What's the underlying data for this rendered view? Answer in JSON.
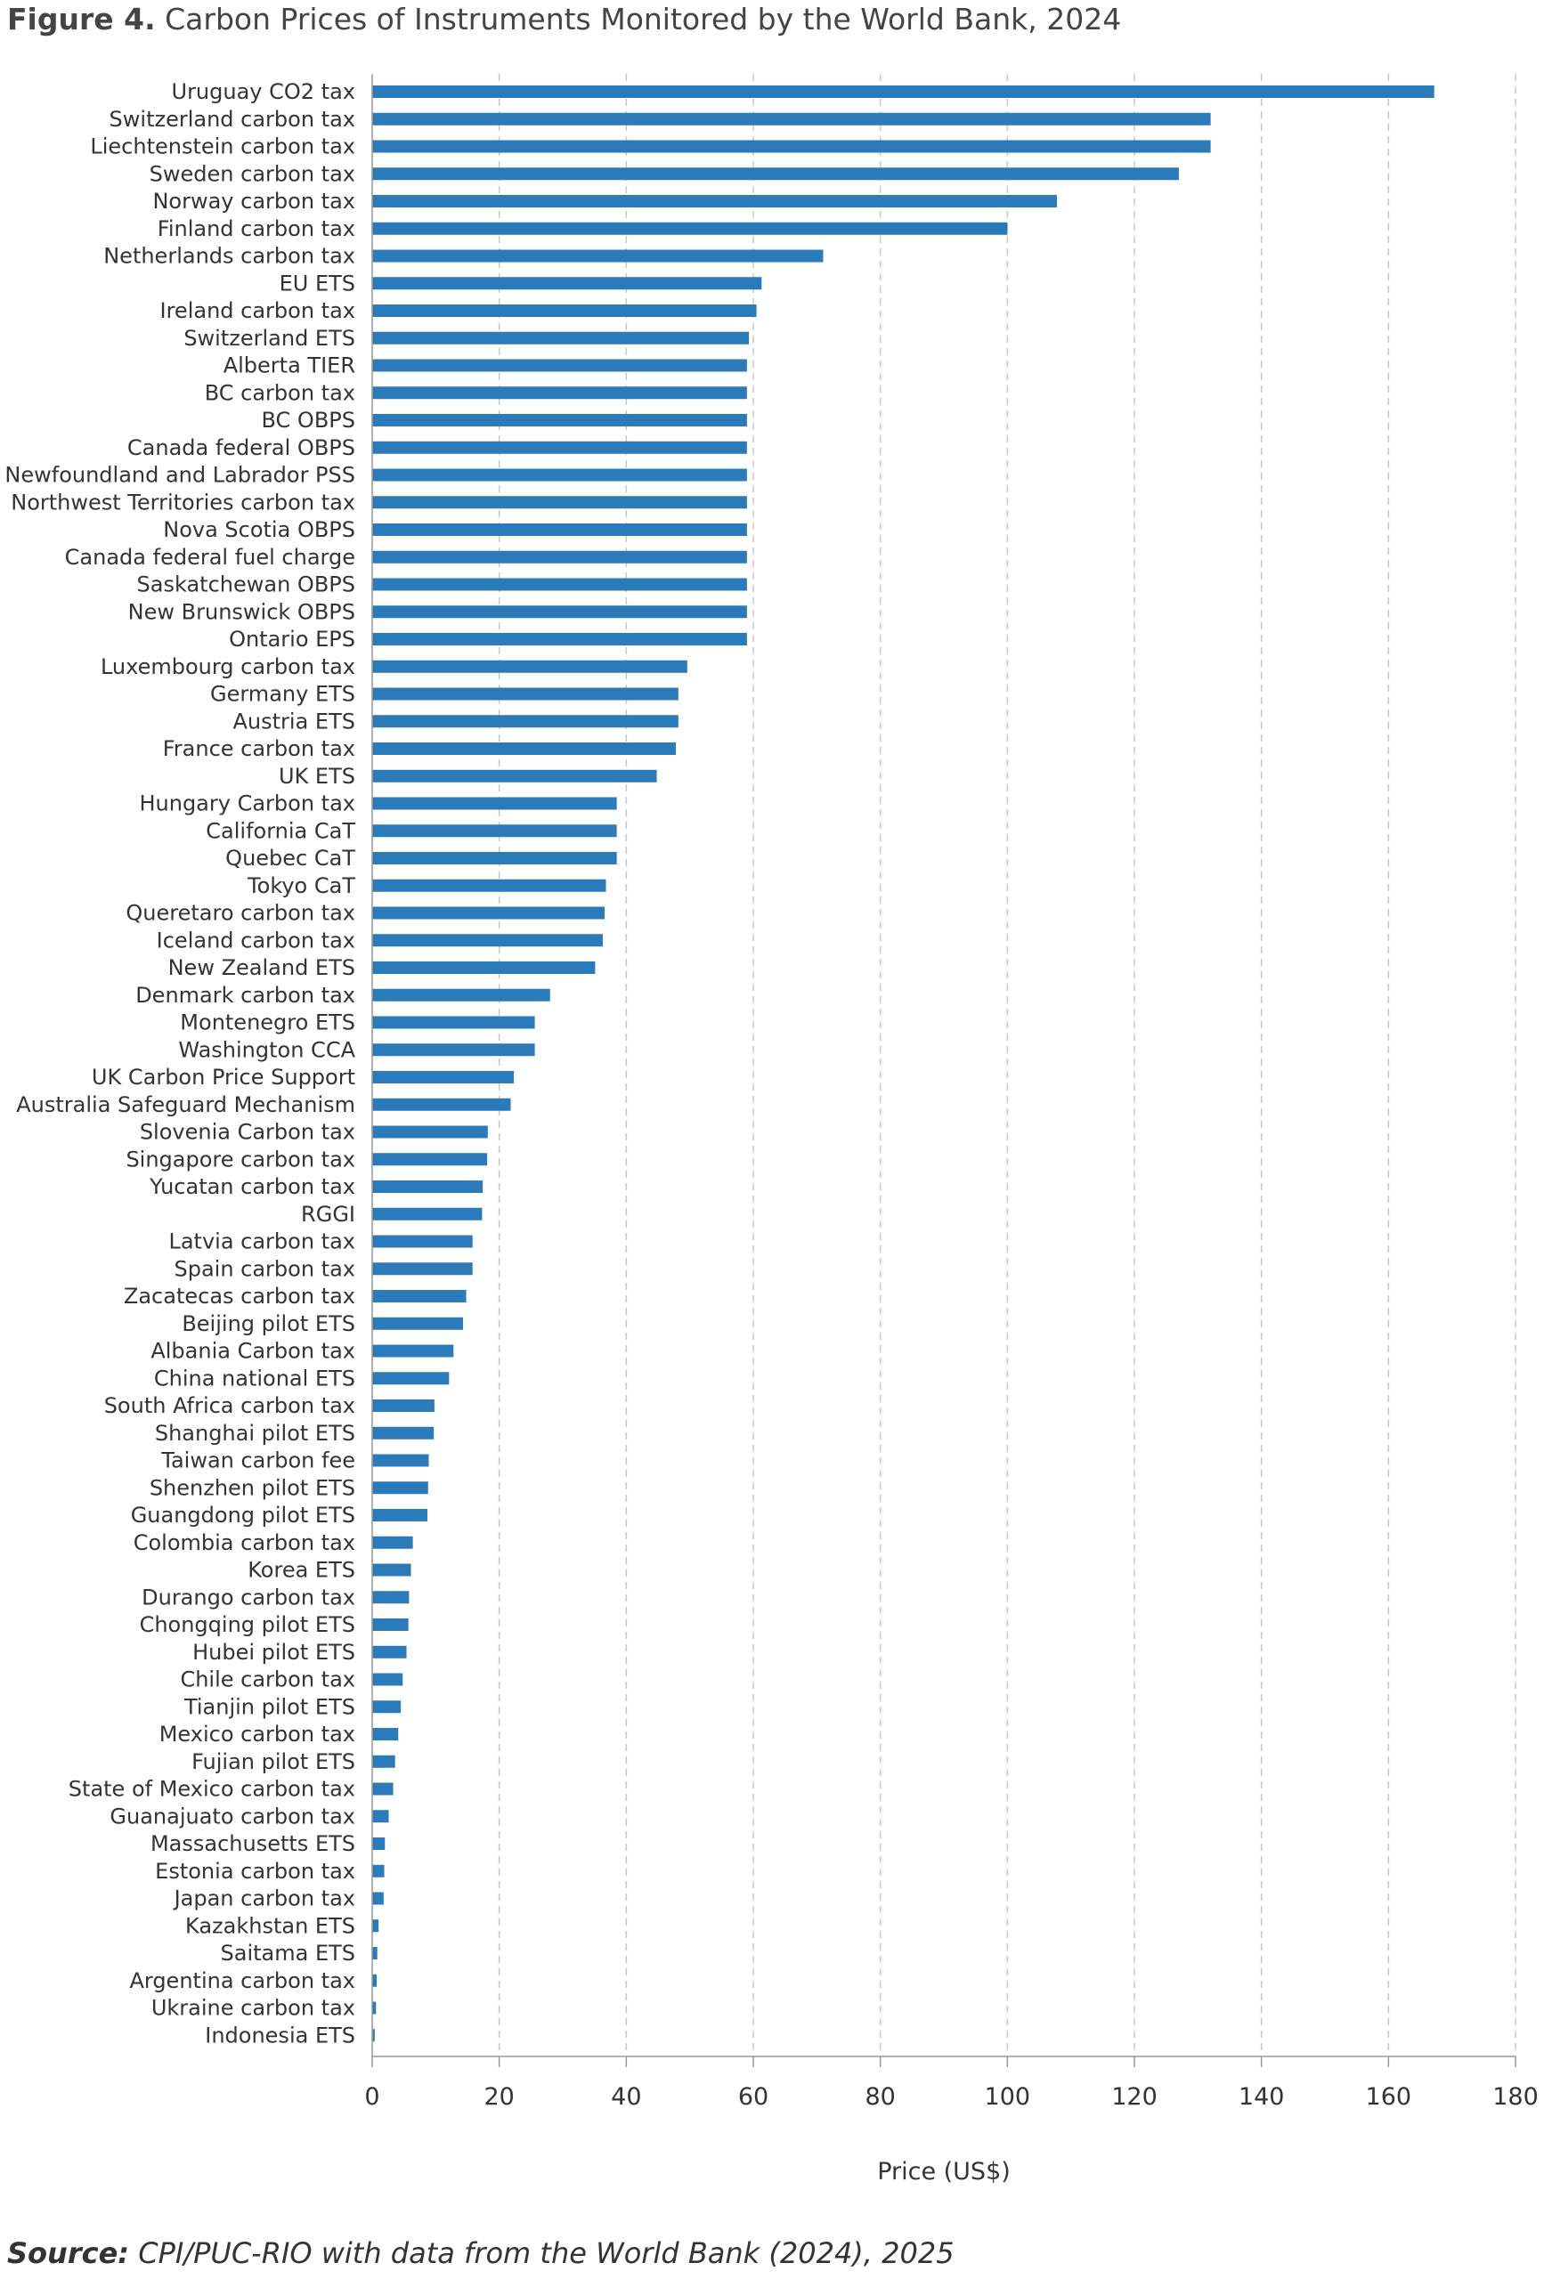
{
  "figure": {
    "label": "Figure 4.",
    "title": "Carbon Prices of Instruments Monitored by the World Bank, 2024"
  },
  "source": {
    "label": "Source:",
    "text": "CPI/PUC-RIO with data from the World Bank (2024), 2025"
  },
  "chart_data": {
    "type": "bar",
    "orientation": "horizontal",
    "title": "Carbon Prices of Instruments Monitored by the World Bank, 2024",
    "xlabel": "Price (US$)",
    "ylabel": "",
    "xlim": [
      0,
      180
    ],
    "xticks": [
      0,
      20,
      40,
      60,
      80,
      100,
      120,
      140,
      160,
      180
    ],
    "grid": "vertical dashed",
    "bar_color": "#2b7bba",
    "categories": [
      "Uruguay CO2 tax",
      "Switzerland carbon tax",
      "Liechtenstein carbon tax",
      "Sweden carbon tax",
      "Norway carbon tax",
      "Finland carbon tax",
      "Netherlands carbon tax",
      "EU ETS",
      "Ireland carbon tax",
      "Switzerland ETS",
      "Alberta TIER",
      "BC carbon tax",
      "BC OBPS",
      "Canada federal OBPS",
      "Newfoundland and Labrador PSS",
      "Northwest Territories carbon tax",
      "Nova Scotia OBPS",
      "Canada federal fuel charge",
      "Saskatchewan OBPS",
      "New Brunswick OBPS",
      "Ontario EPS",
      "Luxembourg carbon tax",
      "Germany ETS",
      "Austria ETS",
      "France carbon tax",
      "UK ETS",
      "Hungary Carbon tax",
      "California CaT",
      "Quebec CaT",
      "Tokyo CaT",
      "Queretaro carbon tax",
      "Iceland carbon tax",
      "New Zealand ETS",
      "Denmark carbon tax",
      "Montenegro ETS",
      "Washington CCA",
      "UK Carbon Price Support",
      "Australia Safeguard Mechanism",
      "Slovenia Carbon tax",
      "Singapore carbon tax",
      "Yucatan carbon tax",
      "RGGI",
      "Latvia carbon tax",
      "Spain carbon tax",
      "Zacatecas carbon tax",
      "Beijing pilot ETS",
      "Albania Carbon tax",
      "China national ETS",
      "South Africa carbon tax",
      "Shanghai pilot ETS",
      "Taiwan carbon fee",
      "Shenzhen pilot ETS",
      "Guangdong pilot ETS",
      "Colombia carbon tax",
      "Korea ETS",
      "Durango carbon tax",
      "Chongqing pilot ETS",
      "Hubei pilot ETS",
      "Chile carbon tax",
      "Tianjin pilot ETS",
      "Mexico carbon tax",
      "Fujian pilot ETS",
      "State of Mexico carbon tax",
      "Guanajuato carbon tax",
      "Massachusetts ETS",
      "Estonia carbon tax",
      "Japan carbon tax",
      "Kazakhstan ETS",
      "Saitama ETS",
      "Argentina carbon tax",
      "Ukraine carbon tax",
      "Indonesia ETS"
    ],
    "values": [
      167.2,
      132.0,
      132.0,
      127.0,
      107.8,
      100.0,
      71.0,
      61.3,
      60.5,
      59.3,
      59.0,
      59.0,
      59.0,
      59.0,
      59.0,
      59.0,
      59.0,
      59.0,
      59.0,
      59.0,
      59.0,
      49.6,
      48.2,
      48.2,
      47.8,
      44.8,
      38.5,
      38.5,
      38.5,
      36.8,
      36.6,
      36.3,
      35.1,
      28.0,
      25.6,
      25.6,
      22.3,
      21.8,
      18.2,
      18.1,
      17.4,
      17.3,
      15.8,
      15.8,
      14.8,
      14.3,
      12.8,
      12.1,
      9.8,
      9.7,
      8.9,
      8.8,
      8.7,
      6.4,
      6.1,
      5.8,
      5.7,
      5.4,
      4.8,
      4.5,
      4.1,
      3.6,
      3.3,
      2.6,
      2.0,
      1.9,
      1.8,
      1.0,
      0.8,
      0.7,
      0.6,
      0.4
    ]
  }
}
